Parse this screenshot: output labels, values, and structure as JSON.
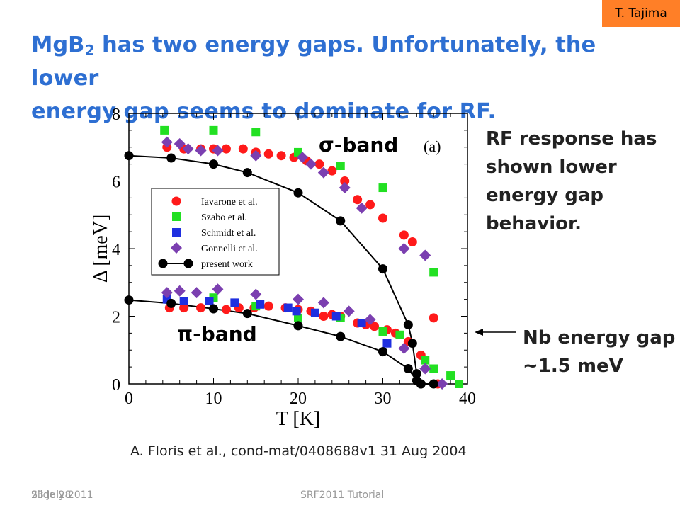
{
  "author_tag": "T. Tajima",
  "title": {
    "line1_prefix": "MgB",
    "line1_sub": "2",
    "line1_rest": " has two energy gaps.  Unfortunately, the lower",
    "line2": "energy gap seems to dominate for RF."
  },
  "note_lines": [
    "RF response has",
    "shown lower",
    "energy gap",
    "behavior."
  ],
  "nb_lines": [
    "Nb energy gap",
    "~1.5 meV"
  ],
  "citation": "A. Floris et al., cond-mat/0408688v1 31 Aug 2004",
  "footer": {
    "left_a": "Slide 28",
    "left_b": "23 July 2011",
    "center": "SRF2011 Tutorial"
  },
  "colors": {
    "title": "#2e6fd2",
    "tag": "#ff7f27",
    "iavarone": "#ff1a1a",
    "szabo": "#22e022",
    "schmidt": "#1f2fe0",
    "gonnelli": "#7b3fb0",
    "present": "#000000"
  },
  "chart_data": {
    "type": "scatter",
    "xlabel": "T [K]",
    "ylabel": "Δ [meV]",
    "xlim": [
      0,
      40
    ],
    "ylim": [
      0,
      8
    ],
    "x_ticks": [
      "0",
      "10",
      "20",
      "30",
      "40"
    ],
    "y_ticks": [
      "0",
      "2",
      "4",
      "6",
      "8"
    ],
    "panel_label": "(a)",
    "annotations": {
      "sigma": "σ-band",
      "pi": "π-band"
    },
    "legend_position": "center-left",
    "series": [
      {
        "name": "Iavarone et al.",
        "marker": "circle",
        "color_key": "iavarone",
        "points": [
          [
            4.5,
            7.0
          ],
          [
            6.5,
            6.95
          ],
          [
            8.5,
            6.95
          ],
          [
            10,
            6.95
          ],
          [
            11.5,
            6.95
          ],
          [
            13.5,
            6.95
          ],
          [
            15,
            6.85
          ],
          [
            16.5,
            6.8
          ],
          [
            18,
            6.75
          ],
          [
            19.5,
            6.7
          ],
          [
            21,
            6.6
          ],
          [
            22.5,
            6.5
          ],
          [
            24,
            6.3
          ],
          [
            25.5,
            6.0
          ],
          [
            27,
            5.45
          ],
          [
            28.5,
            5.3
          ],
          [
            30,
            4.9
          ],
          [
            32.5,
            4.4
          ],
          [
            33.5,
            4.2
          ],
          [
            36,
            1.95
          ],
          [
            4.8,
            2.25
          ],
          [
            6.5,
            2.25
          ],
          [
            8.5,
            2.25
          ],
          [
            11.5,
            2.2
          ],
          [
            13,
            2.25
          ],
          [
            14.8,
            2.25
          ],
          [
            16.5,
            2.3
          ],
          [
            18.5,
            2.25
          ],
          [
            20,
            2.2
          ],
          [
            21.5,
            2.15
          ],
          [
            23,
            2.0
          ],
          [
            24,
            2.05
          ],
          [
            25,
            2.0
          ],
          [
            27,
            1.8
          ],
          [
            28,
            1.75
          ],
          [
            29,
            1.7
          ],
          [
            30.5,
            1.6
          ],
          [
            31.5,
            1.5
          ],
          [
            33,
            1.25
          ],
          [
            34.5,
            0.85
          ],
          [
            36.5,
            0.0
          ]
        ]
      },
      {
        "name": "Szabo et al.",
        "marker": "square",
        "color_key": "szabo",
        "points": [
          [
            4.2,
            7.5
          ],
          [
            10,
            7.5
          ],
          [
            15,
            7.45
          ],
          [
            20,
            6.85
          ],
          [
            25,
            6.45
          ],
          [
            30,
            5.8
          ],
          [
            36,
            3.3
          ],
          [
            10,
            2.55
          ],
          [
            15,
            2.3
          ],
          [
            20,
            1.95
          ],
          [
            25,
            1.95
          ],
          [
            30,
            1.55
          ],
          [
            32,
            1.45
          ],
          [
            35,
            0.7
          ],
          [
            36,
            0.45
          ],
          [
            38,
            0.25
          ],
          [
            39,
            0.0
          ]
        ]
      },
      {
        "name": "Schmidt et al.",
        "marker": "square",
        "color_key": "schmidt",
        "points": [
          [
            4.5,
            2.5
          ],
          [
            6.5,
            2.45
          ],
          [
            9.5,
            2.45
          ],
          [
            12.5,
            2.4
          ],
          [
            15.5,
            2.35
          ],
          [
            18.8,
            2.25
          ],
          [
            19.8,
            2.15
          ],
          [
            22,
            2.1
          ],
          [
            24.5,
            2.0
          ],
          [
            27.5,
            1.8
          ],
          [
            30.5,
            1.2
          ]
        ]
      },
      {
        "name": "Gonnelli et al.",
        "marker": "diamond",
        "color_key": "gonnelli",
        "points": [
          [
            4.5,
            7.15
          ],
          [
            6,
            7.1
          ],
          [
            7,
            6.95
          ],
          [
            8.5,
            6.9
          ],
          [
            10.5,
            6.9
          ],
          [
            15,
            6.75
          ],
          [
            20.5,
            6.7
          ],
          [
            21.5,
            6.5
          ],
          [
            23,
            6.25
          ],
          [
            25.5,
            5.8
          ],
          [
            27.5,
            5.2
          ],
          [
            32.5,
            4.0
          ],
          [
            35,
            3.8
          ],
          [
            4.5,
            2.7
          ],
          [
            6,
            2.75
          ],
          [
            8,
            2.7
          ],
          [
            10.5,
            2.8
          ],
          [
            15,
            2.65
          ],
          [
            20,
            2.5
          ],
          [
            23,
            2.4
          ],
          [
            26,
            2.15
          ],
          [
            28.5,
            1.9
          ],
          [
            32.5,
            1.05
          ],
          [
            35,
            0.45
          ],
          [
            37,
            0.0
          ]
        ]
      },
      {
        "name": "present work",
        "marker": "circle-line",
        "color_key": "present",
        "points_sigma": [
          [
            0,
            6.75
          ],
          [
            5,
            6.68
          ],
          [
            10,
            6.5
          ],
          [
            14,
            6.25
          ],
          [
            20,
            5.65
          ],
          [
            25,
            4.82
          ],
          [
            30,
            3.4
          ],
          [
            33,
            1.75
          ],
          [
            33.5,
            1.2
          ],
          [
            34,
            0.3
          ],
          [
            34.5,
            0.0
          ]
        ],
        "points_pi": [
          [
            0,
            2.48
          ],
          [
            5,
            2.38
          ],
          [
            10,
            2.22
          ],
          [
            14,
            2.08
          ],
          [
            20,
            1.72
          ],
          [
            25,
            1.4
          ],
          [
            30,
            0.95
          ],
          [
            33,
            0.45
          ],
          [
            34,
            0.1
          ],
          [
            34.5,
            0.0
          ],
          [
            36,
            0.0
          ]
        ]
      }
    ]
  }
}
